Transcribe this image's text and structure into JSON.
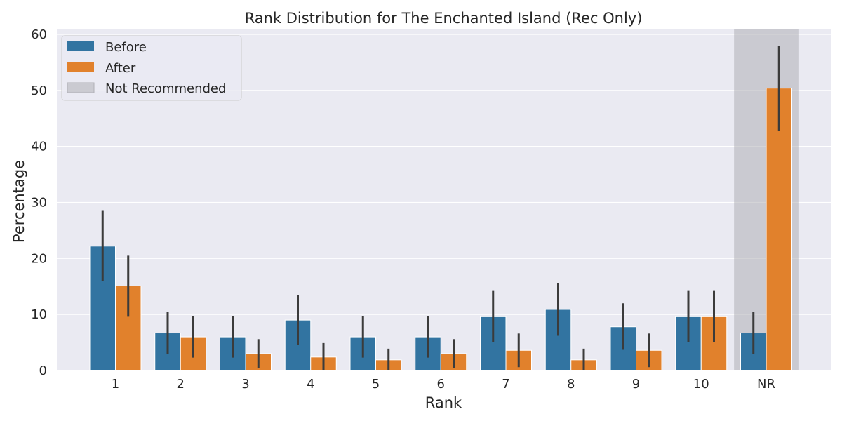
{
  "chart_data": {
    "type": "bar",
    "title": "Rank Distribution for The Enchanted Island (Rec Only)",
    "xlabel": "Rank",
    "ylabel": "Percentage",
    "ylim": [
      0,
      61
    ],
    "yticks": [
      0,
      10,
      20,
      30,
      40,
      50,
      60
    ],
    "grid": true,
    "legend_position": "top-left",
    "categories": [
      "1",
      "2",
      "3",
      "4",
      "5",
      "6",
      "7",
      "8",
      "9",
      "10",
      "NR"
    ],
    "series": [
      {
        "name": "Before",
        "color": "#3274a1",
        "values": [
          22.2,
          6.7,
          6.0,
          9.0,
          6.0,
          6.0,
          9.6,
          10.9,
          7.8,
          9.6,
          6.7
        ],
        "error_low": [
          15.9,
          2.9,
          2.3,
          4.6,
          2.3,
          2.3,
          5.1,
          6.2,
          3.7,
          5.1,
          2.9
        ],
        "error_high": [
          28.5,
          10.4,
          9.7,
          13.4,
          9.7,
          9.7,
          14.2,
          15.6,
          12.0,
          14.2,
          10.4
        ]
      },
      {
        "name": "After",
        "color": "#e1812c",
        "values": [
          15.1,
          6.0,
          3.0,
          2.4,
          1.9,
          3.0,
          3.6,
          1.9,
          3.6,
          9.6,
          50.4
        ],
        "error_low": [
          9.6,
          2.3,
          0.5,
          0.0,
          0.0,
          0.5,
          0.6,
          0.0,
          0.6,
          5.1,
          42.8
        ],
        "error_high": [
          20.5,
          9.7,
          5.6,
          4.9,
          3.9,
          5.6,
          6.6,
          3.9,
          6.6,
          14.2,
          58.0
        ]
      }
    ],
    "highlight": {
      "category": "NR",
      "label": "Not Recommended",
      "color": "#a9a9b0"
    },
    "error_bar_color": "#3b3b3b"
  }
}
